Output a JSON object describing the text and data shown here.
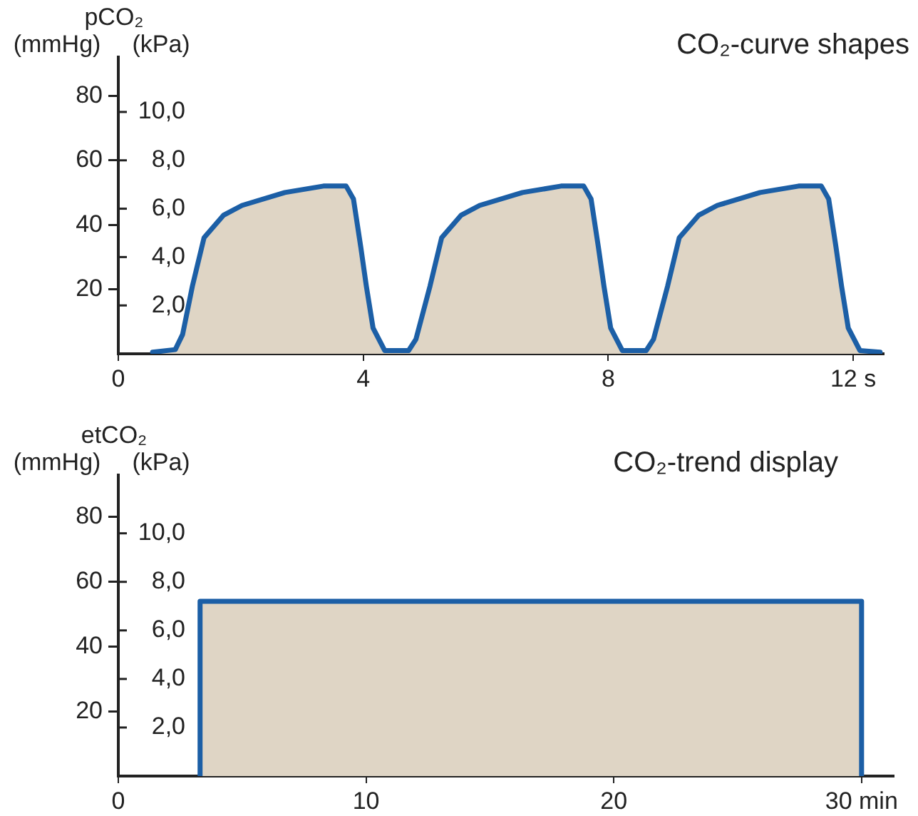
{
  "chart_data": [
    {
      "type": "area",
      "title": "CO₂-curve shapes",
      "ylabel": "(mmHg)",
      "y2label": "(kPa)",
      "annotations": [
        "pCO₂"
      ],
      "x": [
        0.56,
        0.93,
        1.05,
        1.21,
        1.4,
        1.72,
        2.02,
        2.72,
        3.35,
        3.72,
        3.84,
        3.96,
        4.05,
        4.16,
        4.35,
        4.74,
        4.86,
        5.09,
        5.28,
        5.6,
        5.9,
        6.6,
        7.23,
        7.6,
        7.72,
        7.84,
        7.93,
        8.04,
        8.23,
        8.62,
        8.74,
        8.97,
        9.16,
        9.48,
        9.78,
        10.48,
        11.11,
        11.48,
        11.6,
        11.72,
        11.81,
        11.92,
        12.11,
        12.44
      ],
      "series": [
        {
          "color": "#1c5fa6",
          "values": [
            0.5,
            1.3,
            6,
            21,
            36,
            43,
            46,
            50,
            52,
            52,
            48,
            33,
            21,
            8,
            1,
            1,
            4.5,
            21,
            36,
            43,
            46,
            50,
            52,
            52,
            48,
            33,
            21,
            8,
            1,
            1,
            4.5,
            21,
            36,
            43,
            46,
            50,
            52,
            52,
            48,
            33,
            21,
            8,
            1,
            0.5
          ]
        }
      ],
      "xlim": [
        0,
        12.5
      ],
      "xticks": [
        0,
        4,
        8,
        {
          "value": 12,
          "label": "12 s"
        }
      ],
      "ylim": [
        0,
        92
      ],
      "yticks": [
        20,
        40,
        60,
        80
      ],
      "y2lim": [
        0,
        12.27
      ],
      "y2ticks": [
        {
          "value": 2,
          "label": "2,0"
        },
        {
          "value": 4,
          "label": "4,0"
        },
        {
          "value": 6,
          "label": "6,0"
        },
        {
          "value": 8,
          "label": "8,0"
        },
        {
          "value": 10,
          "label": "10,0"
        }
      ]
    },
    {
      "type": "area",
      "title": "CO₂-trend display",
      "ylabel": "(mmHg)",
      "y2label": "(kPa)",
      "annotations": [
        "etCO₂"
      ],
      "x": [
        3.3,
        3.3,
        30,
        30
      ],
      "series": [
        {
          "color": "#1c5fa6",
          "values": [
            0,
            54,
            54,
            0
          ]
        }
      ],
      "xlim": [
        0,
        31.3
      ],
      "xticks": [
        0,
        10,
        20,
        {
          "value": 30,
          "label": "30 min"
        }
      ],
      "ylim": [
        0,
        93
      ],
      "yticks": [
        20,
        40,
        60,
        80
      ],
      "y2lim": [
        0,
        12.4
      ],
      "y2ticks": [
        {
          "value": 2,
          "label": "2,0"
        },
        {
          "value": 4,
          "label": "4,0"
        },
        {
          "value": 6,
          "label": "6,0"
        },
        {
          "value": 8,
          "label": "8,0"
        },
        {
          "value": 10,
          "label": "10,0"
        }
      ]
    }
  ]
}
